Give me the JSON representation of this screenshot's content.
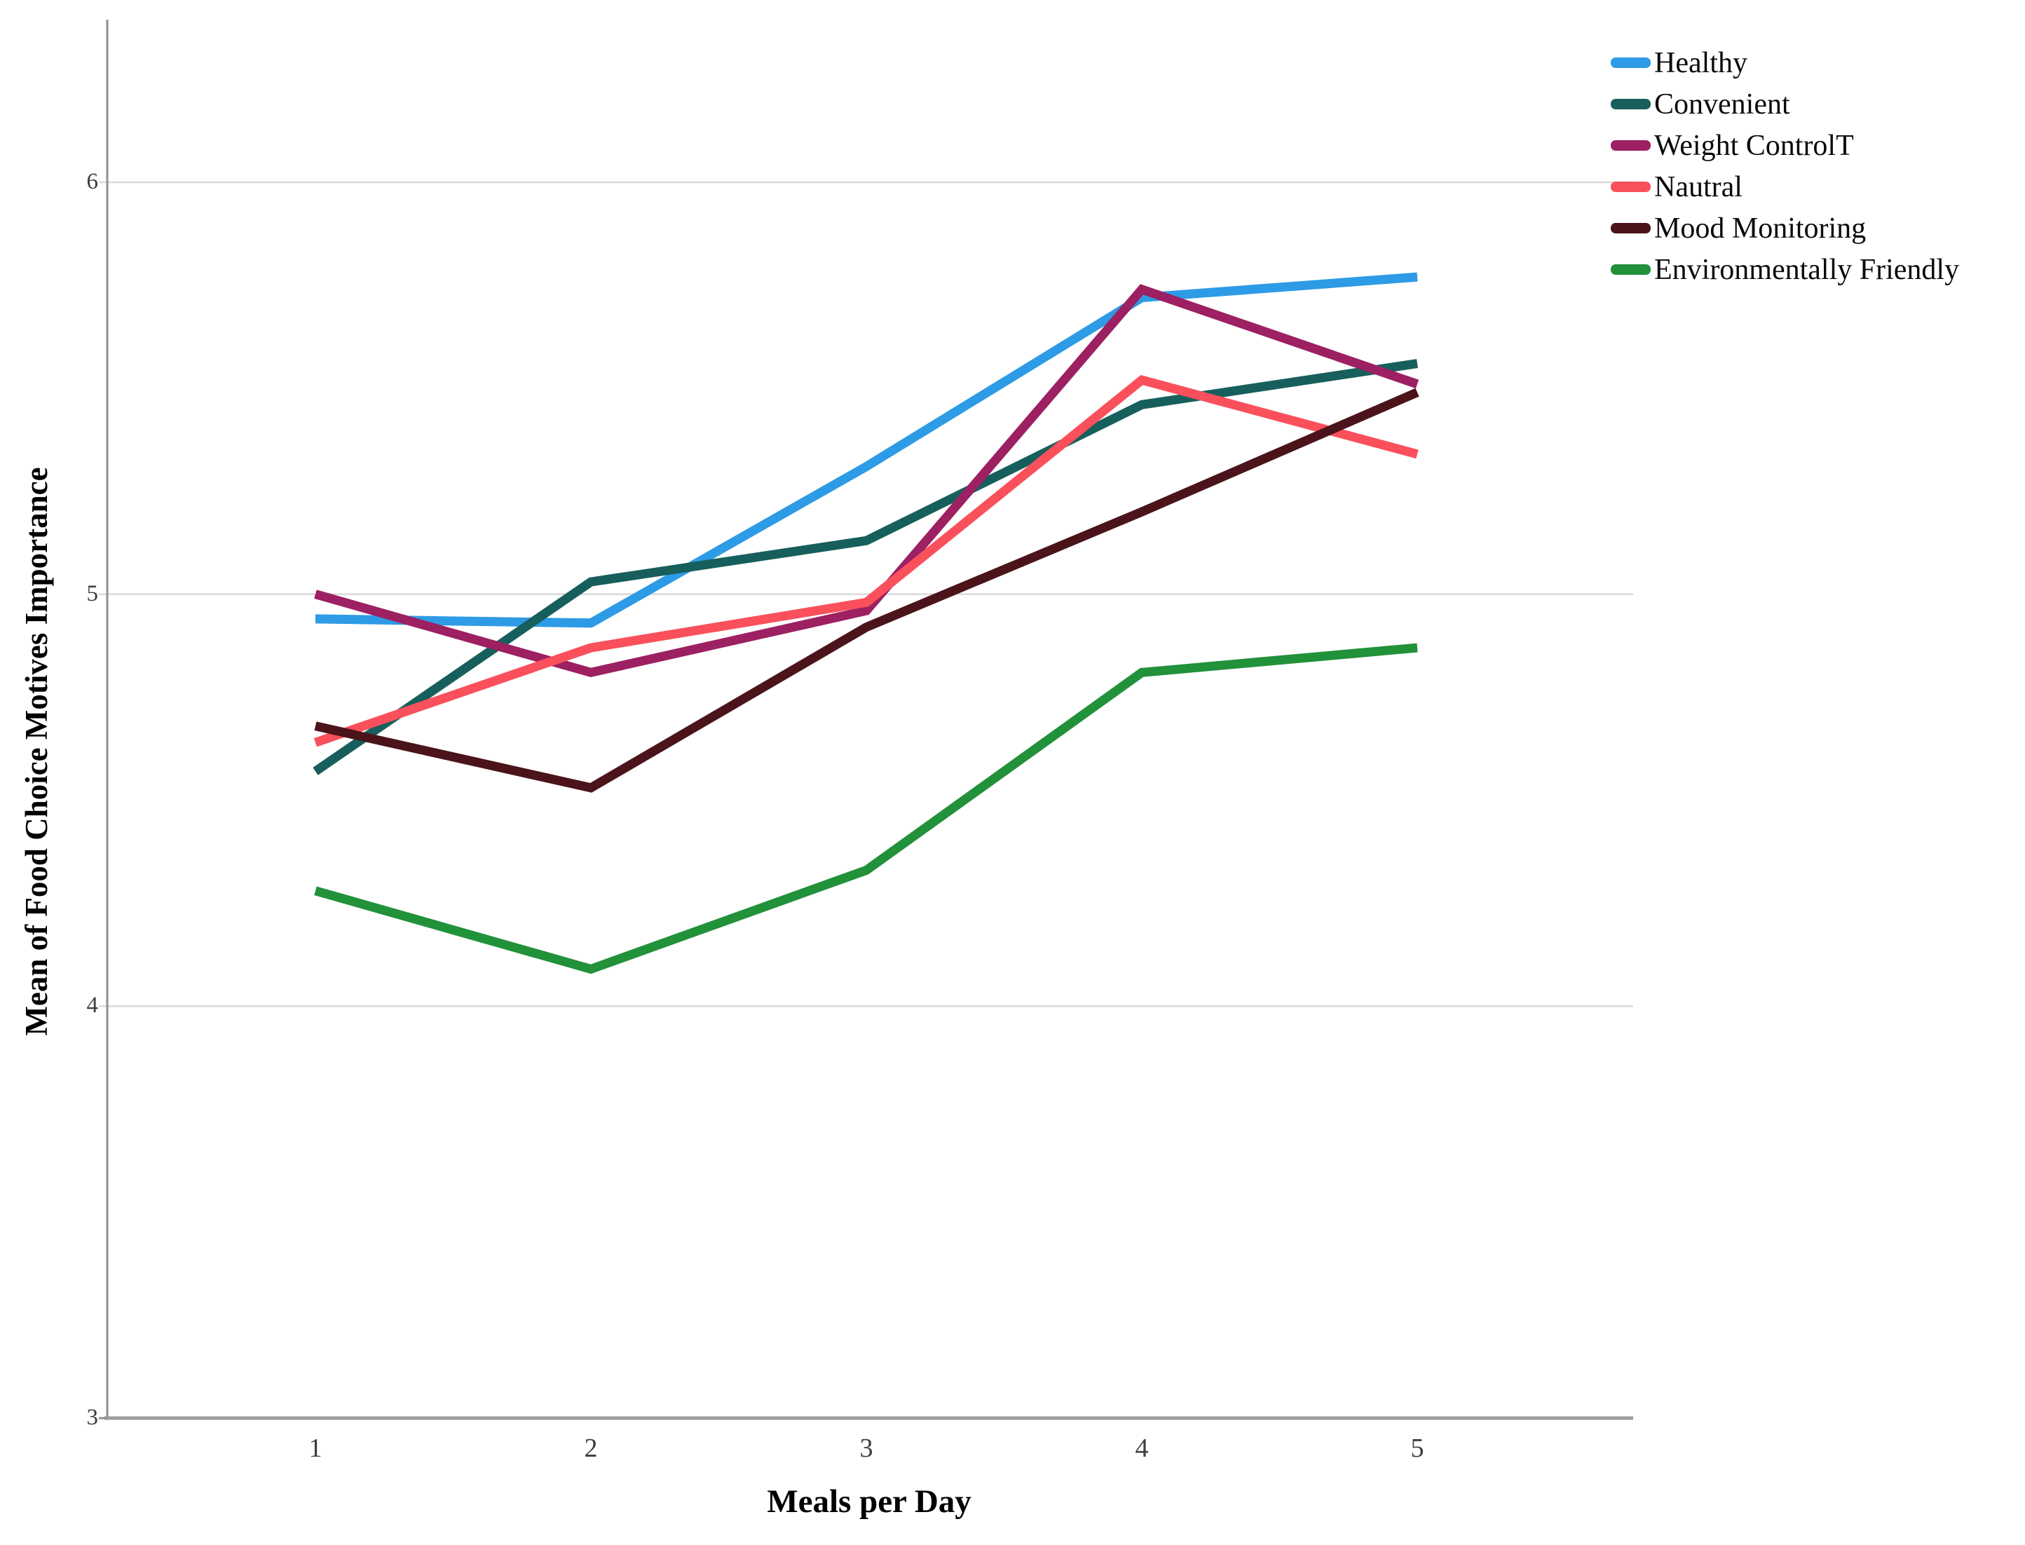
{
  "chart_data": {
    "type": "line",
    "title": "",
    "xlabel": "Meals per Day",
    "ylabel": "Mean of Food Choice Motives Importance",
    "x": [
      1,
      2,
      3,
      4,
      5
    ],
    "xticks": [
      "1",
      "2",
      "3",
      "4",
      "5"
    ],
    "yticks": [
      3,
      4,
      5,
      6
    ],
    "ylim": [
      3,
      6.4
    ],
    "grid": "horizontal",
    "grid_color": "#d9d9d9",
    "axis_color": "#9e9e9e",
    "tick_label_color": "#3d3d3d",
    "legend_position": "top-right-outside",
    "series": [
      {
        "name": "Healthy",
        "color": "#2d9be5",
        "values": [
          4.94,
          4.93,
          5.31,
          5.72,
          5.77
        ]
      },
      {
        "name": "Convenient",
        "color": "#175f5c",
        "values": [
          4.57,
          5.03,
          5.13,
          5.46,
          5.56
        ]
      },
      {
        "name": "Weight ControlT",
        "color": "#9c2062",
        "values": [
          5.0,
          4.81,
          4.96,
          5.74,
          5.51
        ]
      },
      {
        "name": "Nautral",
        "color": "#f9505c",
        "values": [
          4.64,
          4.87,
          4.98,
          5.52,
          5.34
        ]
      },
      {
        "name": "Mood Monitoring",
        "color": "#4a141a",
        "values": [
          4.68,
          4.53,
          4.92,
          5.2,
          5.49
        ]
      },
      {
        "name": "Environmentally Friendly",
        "color": "#21913a",
        "values": [
          4.28,
          4.09,
          4.33,
          4.81,
          4.87
        ]
      }
    ]
  }
}
